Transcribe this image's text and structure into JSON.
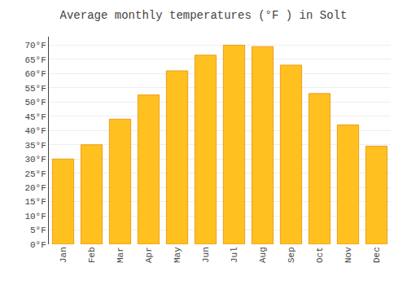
{
  "chart_data": {
    "type": "bar",
    "title": "Average monthly temperatures (°F ) in Solt",
    "categories": [
      "Jan",
      "Feb",
      "Mar",
      "Apr",
      "May",
      "Jun",
      "Jul",
      "Aug",
      "Sep",
      "Oct",
      "Nov",
      "Dec"
    ],
    "values": [
      30,
      35,
      44,
      52.5,
      61,
      66.5,
      70,
      69.5,
      63,
      53,
      42,
      34.5
    ],
    "color": "#FFC020",
    "ylim": [
      0,
      73
    ],
    "yticks": [
      {
        "value": 0,
        "label": "0°F"
      },
      {
        "value": 5,
        "label": "5°F"
      },
      {
        "value": 10,
        "label": "10°F"
      },
      {
        "value": 15,
        "label": "15°F"
      },
      {
        "value": 20,
        "label": "20°F"
      },
      {
        "value": 25,
        "label": "25°F"
      },
      {
        "value": 30,
        "label": "30°F"
      },
      {
        "value": 35,
        "label": "35°F"
      },
      {
        "value": 40,
        "label": "40°F"
      },
      {
        "value": 45,
        "label": "45°F"
      },
      {
        "value": 50,
        "label": "50°F"
      },
      {
        "value": 55,
        "label": "55°F"
      },
      {
        "value": 60,
        "label": "60°F"
      },
      {
        "value": 65,
        "label": "65°F"
      },
      {
        "value": 70,
        "label": "70°F"
      }
    ],
    "grid": true
  }
}
